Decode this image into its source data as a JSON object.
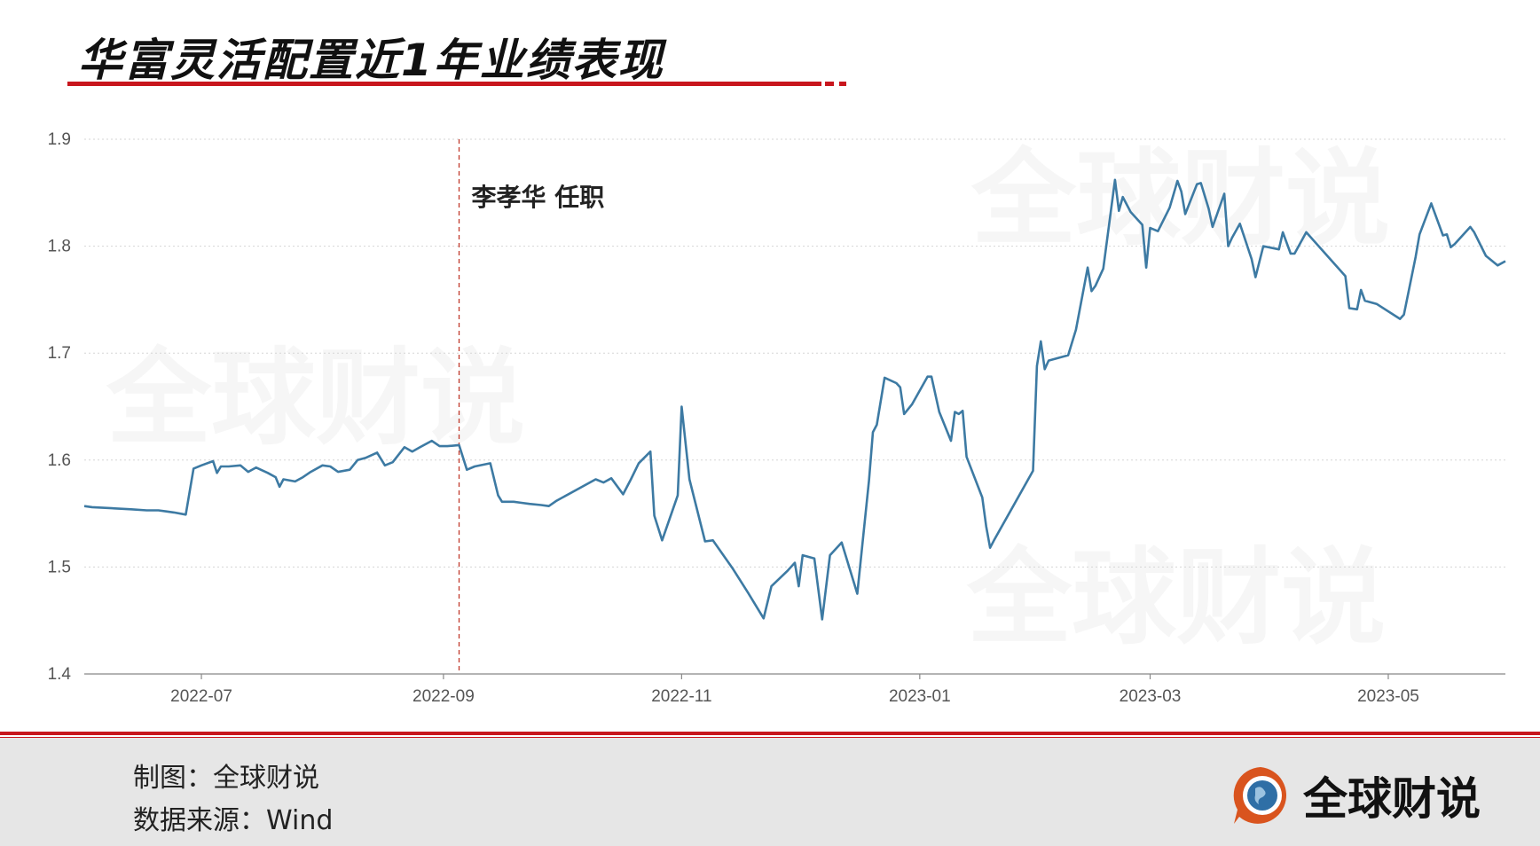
{
  "title": "华富灵活配置近1年业绩表现",
  "footer": {
    "credit_chart": "制图：全球财说",
    "credit_source": "数据来源：Wind",
    "brand_name": "全球财说"
  },
  "watermark_text": "全球财说",
  "colors": {
    "accent": "#c8161d",
    "line": "#3d7aa3",
    "marker": "#c0392b",
    "grid": "#d5d5d5"
  },
  "chart_data": {
    "type": "line",
    "title": "",
    "xlabel": "",
    "ylabel": "",
    "ylim": [
      1.4,
      1.9
    ],
    "yticks": [
      "1.4",
      "1.5",
      "1.6",
      "1.7",
      "1.8",
      "1.9"
    ],
    "xlim": [
      "2022-06-01",
      "2023-05-31"
    ],
    "xticks": [
      {
        "date": "2022-07-01",
        "label": "2022-07"
      },
      {
        "date": "2022-09-01",
        "label": "2022-09"
      },
      {
        "date": "2022-11-01",
        "label": "2022-11"
      },
      {
        "date": "2023-01-01",
        "label": "2023-01"
      },
      {
        "date": "2023-03-01",
        "label": "2023-03"
      },
      {
        "date": "2023-05-01",
        "label": "2023-05"
      }
    ],
    "grid": true,
    "annotations": [
      {
        "date": "2022-09-05",
        "text": "李孝华 任职",
        "style": "dashed-vertical"
      }
    ],
    "series": [
      {
        "name": "",
        "points": [
          [
            "2022-06-01",
            1.557
          ],
          [
            "2022-06-03",
            1.556
          ],
          [
            "2022-06-08",
            1.555
          ],
          [
            "2022-06-13",
            1.554
          ],
          [
            "2022-06-17",
            1.553
          ],
          [
            "2022-06-20",
            1.553
          ],
          [
            "2022-06-22",
            1.552
          ],
          [
            "2022-06-24",
            1.551
          ],
          [
            "2022-06-27",
            1.549
          ],
          [
            "2022-06-29",
            1.592
          ],
          [
            "2022-07-01",
            1.595
          ],
          [
            "2022-07-04",
            1.599
          ],
          [
            "2022-07-05",
            1.588
          ],
          [
            "2022-07-06",
            1.594
          ],
          [
            "2022-07-08",
            1.594
          ],
          [
            "2022-07-11",
            1.595
          ],
          [
            "2022-07-13",
            1.589
          ],
          [
            "2022-07-15",
            1.593
          ],
          [
            "2022-07-18",
            1.588
          ],
          [
            "2022-07-20",
            1.584
          ],
          [
            "2022-07-21",
            1.575
          ],
          [
            "2022-07-22",
            1.582
          ],
          [
            "2022-07-25",
            1.58
          ],
          [
            "2022-07-27",
            1.584
          ],
          [
            "2022-07-29",
            1.589
          ],
          [
            "2022-08-01",
            1.595
          ],
          [
            "2022-08-03",
            1.594
          ],
          [
            "2022-08-05",
            1.589
          ],
          [
            "2022-08-08",
            1.591
          ],
          [
            "2022-08-10",
            1.6
          ],
          [
            "2022-08-12",
            1.602
          ],
          [
            "2022-08-15",
            1.607
          ],
          [
            "2022-08-17",
            1.595
          ],
          [
            "2022-08-19",
            1.598
          ],
          [
            "2022-08-22",
            1.612
          ],
          [
            "2022-08-24",
            1.608
          ],
          [
            "2022-08-26",
            1.612
          ],
          [
            "2022-08-29",
            1.618
          ],
          [
            "2022-08-31",
            1.613
          ],
          [
            "2022-09-02",
            1.613
          ],
          [
            "2022-09-05",
            1.614
          ],
          [
            "2022-09-07",
            1.591
          ],
          [
            "2022-09-09",
            1.594
          ],
          [
            "2022-09-13",
            1.597
          ],
          [
            "2022-09-15",
            1.567
          ],
          [
            "2022-09-16",
            1.561
          ],
          [
            "2022-09-19",
            1.561
          ],
          [
            "2022-09-21",
            1.56
          ],
          [
            "2022-09-23",
            1.559
          ],
          [
            "2022-09-26",
            1.558
          ],
          [
            "2022-09-28",
            1.557
          ],
          [
            "2022-09-30",
            1.562
          ],
          [
            "2022-10-10",
            1.582
          ],
          [
            "2022-10-12",
            1.579
          ],
          [
            "2022-10-14",
            1.583
          ],
          [
            "2022-10-17",
            1.568
          ],
          [
            "2022-10-19",
            1.582
          ],
          [
            "2022-10-21",
            1.597
          ],
          [
            "2022-10-24",
            1.608
          ],
          [
            "2022-10-25",
            1.548
          ],
          [
            "2022-10-27",
            1.525
          ],
          [
            "2022-10-31",
            1.567
          ],
          [
            "2022-11-01",
            1.65
          ],
          [
            "2022-11-03",
            1.582
          ],
          [
            "2022-11-07",
            1.524
          ],
          [
            "2022-11-09",
            1.525
          ],
          [
            "2022-11-14",
            1.499
          ],
          [
            "2022-11-18",
            1.476
          ],
          [
            "2022-11-21",
            1.458
          ],
          [
            "2022-11-22",
            1.452
          ],
          [
            "2022-11-24",
            1.482
          ],
          [
            "2022-11-28",
            1.496
          ],
          [
            "2022-11-30",
            1.504
          ],
          [
            "2022-12-01",
            1.482
          ],
          [
            "2022-12-02",
            1.511
          ],
          [
            "2022-12-05",
            1.508
          ],
          [
            "2022-12-07",
            1.451
          ],
          [
            "2022-12-09",
            1.511
          ],
          [
            "2022-12-12",
            1.523
          ],
          [
            "2022-12-16",
            1.475
          ],
          [
            "2022-12-19",
            1.581
          ],
          [
            "2022-12-20",
            1.626
          ],
          [
            "2022-12-21",
            1.633
          ],
          [
            "2022-12-23",
            1.677
          ],
          [
            "2022-12-26",
            1.672
          ],
          [
            "2022-12-27",
            1.668
          ],
          [
            "2022-12-28",
            1.643
          ],
          [
            "2022-12-30",
            1.652
          ],
          [
            "2023-01-03",
            1.678
          ],
          [
            "2023-01-04",
            1.678
          ],
          [
            "2023-01-06",
            1.645
          ],
          [
            "2023-01-09",
            1.618
          ],
          [
            "2023-01-10",
            1.645
          ],
          [
            "2023-01-11",
            1.643
          ],
          [
            "2023-01-12",
            1.646
          ],
          [
            "2023-01-13",
            1.603
          ],
          [
            "2023-01-17",
            1.565
          ],
          [
            "2023-01-18",
            1.538
          ],
          [
            "2023-01-19",
            1.518
          ],
          [
            "2023-01-20",
            1.525
          ],
          [
            "2023-01-30",
            1.59
          ],
          [
            "2023-01-31",
            1.688
          ],
          [
            "2023-02-01",
            1.711
          ],
          [
            "2023-02-02",
            1.685
          ],
          [
            "2023-02-03",
            1.693
          ],
          [
            "2023-02-06",
            1.696
          ],
          [
            "2023-02-08",
            1.698
          ],
          [
            "2023-02-10",
            1.722
          ],
          [
            "2023-02-13",
            1.78
          ],
          [
            "2023-02-14",
            1.758
          ],
          [
            "2023-02-15",
            1.763
          ],
          [
            "2023-02-17",
            1.779
          ],
          [
            "2023-02-20",
            1.862
          ],
          [
            "2023-02-21",
            1.833
          ],
          [
            "2023-02-22",
            1.846
          ],
          [
            "2023-02-24",
            1.832
          ],
          [
            "2023-02-27",
            1.82
          ],
          [
            "2023-02-28",
            1.78
          ],
          [
            "2023-03-01",
            1.817
          ],
          [
            "2023-03-03",
            1.814
          ],
          [
            "2023-03-06",
            1.836
          ],
          [
            "2023-03-08",
            1.861
          ],
          [
            "2023-03-09",
            1.851
          ],
          [
            "2023-03-10",
            1.83
          ],
          [
            "2023-03-13",
            1.858
          ],
          [
            "2023-03-14",
            1.859
          ],
          [
            "2023-03-16",
            1.835
          ],
          [
            "2023-03-17",
            1.818
          ],
          [
            "2023-03-20",
            1.849
          ],
          [
            "2023-03-21",
            1.8
          ],
          [
            "2023-03-22",
            1.808
          ],
          [
            "2023-03-24",
            1.821
          ],
          [
            "2023-03-27",
            1.788
          ],
          [
            "2023-03-28",
            1.771
          ],
          [
            "2023-03-30",
            1.8
          ],
          [
            "2023-04-03",
            1.797
          ],
          [
            "2023-04-04",
            1.813
          ],
          [
            "2023-04-06",
            1.793
          ],
          [
            "2023-04-07",
            1.793
          ],
          [
            "2023-04-10",
            1.813
          ],
          [
            "2023-04-20",
            1.772
          ],
          [
            "2023-04-21",
            1.742
          ],
          [
            "2023-04-23",
            1.741
          ],
          [
            "2023-04-24",
            1.759
          ],
          [
            "2023-04-25",
            1.749
          ],
          [
            "2023-04-28",
            1.746
          ],
          [
            "2023-05-04",
            1.732
          ],
          [
            "2023-05-05",
            1.736
          ],
          [
            "2023-05-08",
            1.79
          ],
          [
            "2023-05-09",
            1.811
          ],
          [
            "2023-05-12",
            1.84
          ],
          [
            "2023-05-15",
            1.81
          ],
          [
            "2023-05-16",
            1.811
          ],
          [
            "2023-05-17",
            1.799
          ],
          [
            "2023-05-18",
            1.802
          ],
          [
            "2023-05-22",
            1.818
          ],
          [
            "2023-05-23",
            1.813
          ],
          [
            "2023-05-26",
            1.791
          ],
          [
            "2023-05-29",
            1.782
          ],
          [
            "2023-05-31",
            1.786
          ]
        ]
      }
    ]
  }
}
